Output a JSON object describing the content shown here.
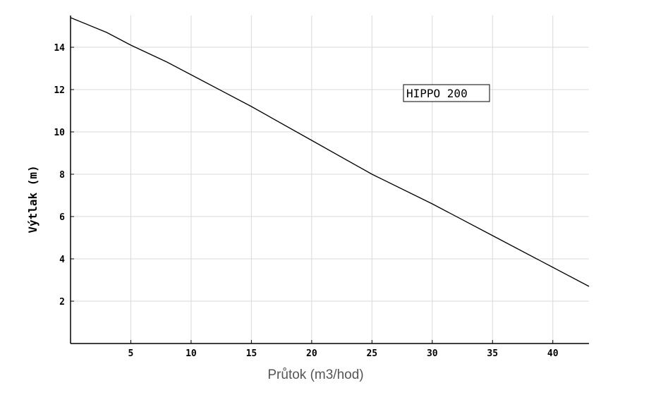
{
  "chart_data": {
    "type": "line",
    "xlabel": "Průtok (m3/hod)",
    "ylabel": "Výtlak (m)",
    "xlim": [
      0,
      43
    ],
    "ylim": [
      0,
      15.5
    ],
    "xticks": [
      5,
      10,
      15,
      20,
      25,
      30,
      35,
      40
    ],
    "yticks": [
      2,
      4,
      6,
      8,
      10,
      12,
      14
    ],
    "grid": true,
    "legend_position": "top-right",
    "series": [
      {
        "name": "HIPPO 200",
        "color": "#000000",
        "x": [
          0,
          3,
          5,
          8,
          10,
          15,
          20,
          25,
          30,
          35,
          40,
          43
        ],
        "y": [
          15.4,
          14.7,
          14.1,
          13.3,
          12.7,
          11.2,
          9.6,
          8.0,
          6.6,
          5.1,
          3.6,
          2.7
        ]
      }
    ]
  }
}
